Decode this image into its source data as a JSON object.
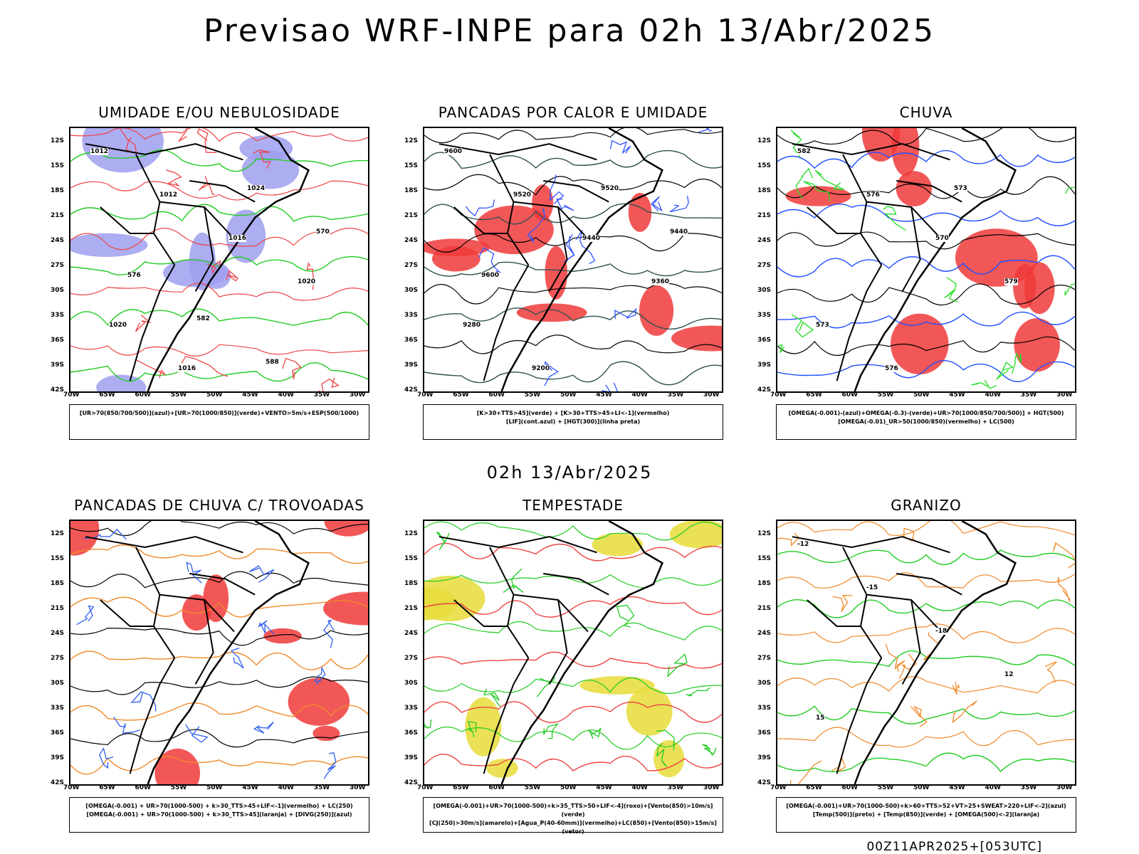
{
  "title": "Previsao WRF-INPE  para 02h 13/Abr/2025",
  "mid_title": "02h 13/Abr/2025",
  "footer": "00Z11APR2025+[053UTC]",
  "y_ticks": [
    "12S",
    "15S",
    "18S",
    "21S",
    "24S",
    "27S",
    "30S",
    "33S",
    "36S",
    "39S",
    "42S"
  ],
  "x_ticks": [
    "70W",
    "65W",
    "60W",
    "55W",
    "50W",
    "45W",
    "40W",
    "35W",
    "30W"
  ],
  "panels": [
    {
      "title": "UMIDADE E/OU NEBULOSIDADE",
      "legend": [
        "[UR>70(850/700/500)](azul)+[UR>70(1000/850)](verde)+VENTO>5m/s+ESP(500/1000)"
      ],
      "colors": {
        "fill": "#9f9ff0",
        "line1": "#22cc22",
        "line2": "#ee4444"
      }
    },
    {
      "title": "PANCADAS POR CALOR E UMIDADE",
      "legend": [
        "[K>30+TTS>45](verde) + [K>30+TTS>45+LI<-1](vermelho)",
        "[LIF](cont.azul) + [HGT(300)](linha preta)"
      ],
      "colors": {
        "fill": "#f03a3a",
        "line1": "#2f5050",
        "line2": "#3355ff"
      }
    },
    {
      "title": "CHUVA",
      "legend": [
        "[OMEGA(-0.001)-(azul)+OMEGA(-0.3)-(verde)+UR>70(1000/850/700/500)] + HGT(500)",
        "[OMEGA(-0.01)_UR>50(1000/850)(vermelho) + LC(500)"
      ],
      "colors": {
        "fill": "#f03a3a",
        "line1": "#1f4fff",
        "line2": "#22dd22"
      }
    },
    {
      "title": "PANCADAS DE CHUVA C/ TROVOADAS",
      "legend": [
        "[OMEGA(-0.001) + UR>70(1000-500) + k>30_TTS>45+LIF<-1](vermelho) + LC(250)",
        "[OMEGA(-0.001) + UR>70(1000-500) + k>30_TTS>45](laranja) + [DIVG(250)](azul)"
      ],
      "colors": {
        "fill": "#f03a3a",
        "line1": "#f08a2a",
        "line2": "#2f5ff0"
      }
    },
    {
      "title": "TEMPESTADE",
      "legend": [
        "[OMEGA(-0.001)+UR>70(1000-500)+k>35_TTS>50+LIF<-4](roxo)+[Vento(850)>10m/s](verde)",
        "[CJ(250)>30m/s](amarelo)+[Agua_P(40-60mm)](vermelho)+LC(850)+[Vento(850)>15m/s](vetor)"
      ],
      "colors": {
        "fill": "#e6dc3a",
        "line1": "#ee4444",
        "line2": "#22cc22"
      }
    },
    {
      "title": "GRANIZO",
      "legend": [
        "[OMEGA(-0.001)+UR>70(1000-500)+k>60+TTS>52+VT>25+SWEAT>220+LIF<-2](azul)",
        "[Temp(500)](preto) + [Temp(850)](verde) + [OMEGA(500)<-2](laranja)"
      ],
      "colors": {
        "fill": "#ffffff",
        "line1": "#22cc22",
        "line2": "#f08a2a"
      }
    }
  ],
  "contour_labels": {
    "p0": [
      "1012",
      "1012",
      "1016",
      "1020",
      "1020",
      "1016",
      "1024",
      "570",
      "576",
      "582",
      "588"
    ],
    "p1": [
      "9600",
      "9520",
      "9440",
      "9360",
      "9280",
      "9200",
      "9520",
      "9440",
      "9600"
    ],
    "p2": [
      "582",
      "576",
      "570",
      "579",
      "573",
      "576",
      "573"
    ],
    "p5": [
      "-12",
      "-15",
      "-18",
      "12",
      "15"
    ]
  }
}
